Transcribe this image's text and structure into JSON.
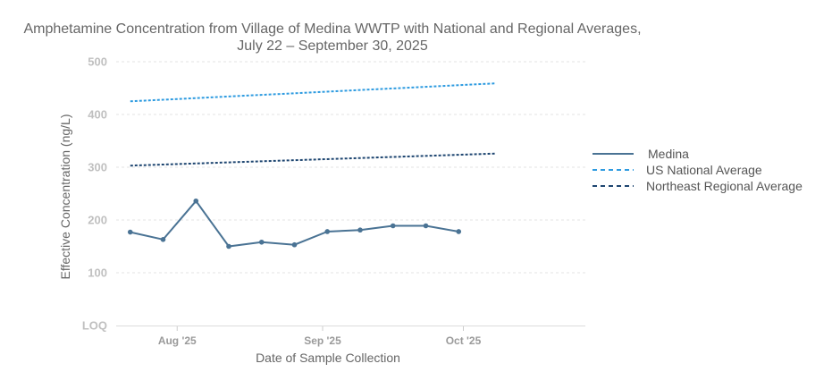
{
  "chart_data": {
    "type": "line",
    "title_line1": "Amphetamine Concentration from Village of Medina WWTP with National and Regional Averages,",
    "title_line2": "July 22 – September 30, 2025",
    "xlabel": "Date of Sample Collection",
    "ylabel": "Effective Concentration (ng/L)",
    "x_range": [
      "2025-07-19",
      "2025-10-27"
    ],
    "ylim": [
      0,
      500
    ],
    "y_ticks": [
      {
        "value": 0,
        "label": "LOQ"
      },
      {
        "value": 100,
        "label": "100"
      },
      {
        "value": 200,
        "label": "200"
      },
      {
        "value": 300,
        "label": "300"
      },
      {
        "value": 400,
        "label": "400"
      },
      {
        "value": 500,
        "label": "500"
      }
    ],
    "x_ticks": [
      {
        "date": "2025-08-01",
        "label": "Aug '25"
      },
      {
        "date": "2025-09-01",
        "label": "Sep '25"
      },
      {
        "date": "2025-10-01",
        "label": "Oct '25"
      }
    ],
    "grid": true,
    "legend_position": "right",
    "series": [
      {
        "name": "Medina",
        "style": "solid",
        "color": "#4a7394",
        "markers": true,
        "points": [
          {
            "date": "2025-07-22",
            "y": 177
          },
          {
            "date": "2025-07-29",
            "y": 163
          },
          {
            "date": "2025-08-05",
            "y": 236
          },
          {
            "date": "2025-08-12",
            "y": 150
          },
          {
            "date": "2025-08-19",
            "y": 158
          },
          {
            "date": "2025-08-26",
            "y": 153
          },
          {
            "date": "2025-09-02",
            "y": 178
          },
          {
            "date": "2025-09-09",
            "y": 181
          },
          {
            "date": "2025-09-16",
            "y": 189
          },
          {
            "date": "2025-09-23",
            "y": 189
          },
          {
            "date": "2025-09-30",
            "y": 178
          }
        ]
      },
      {
        "name": "US National Average",
        "style": "dashed",
        "color": "#2e9be0",
        "markers": false,
        "points": [
          {
            "date": "2025-07-22",
            "y": 425
          },
          {
            "date": "2025-10-08",
            "y": 459
          }
        ]
      },
      {
        "name": "Northeast Regional Average",
        "style": "dashed",
        "color": "#1d4570",
        "markers": false,
        "points": [
          {
            "date": "2025-07-22",
            "y": 303
          },
          {
            "date": "2025-10-08",
            "y": 326
          }
        ]
      }
    ]
  }
}
